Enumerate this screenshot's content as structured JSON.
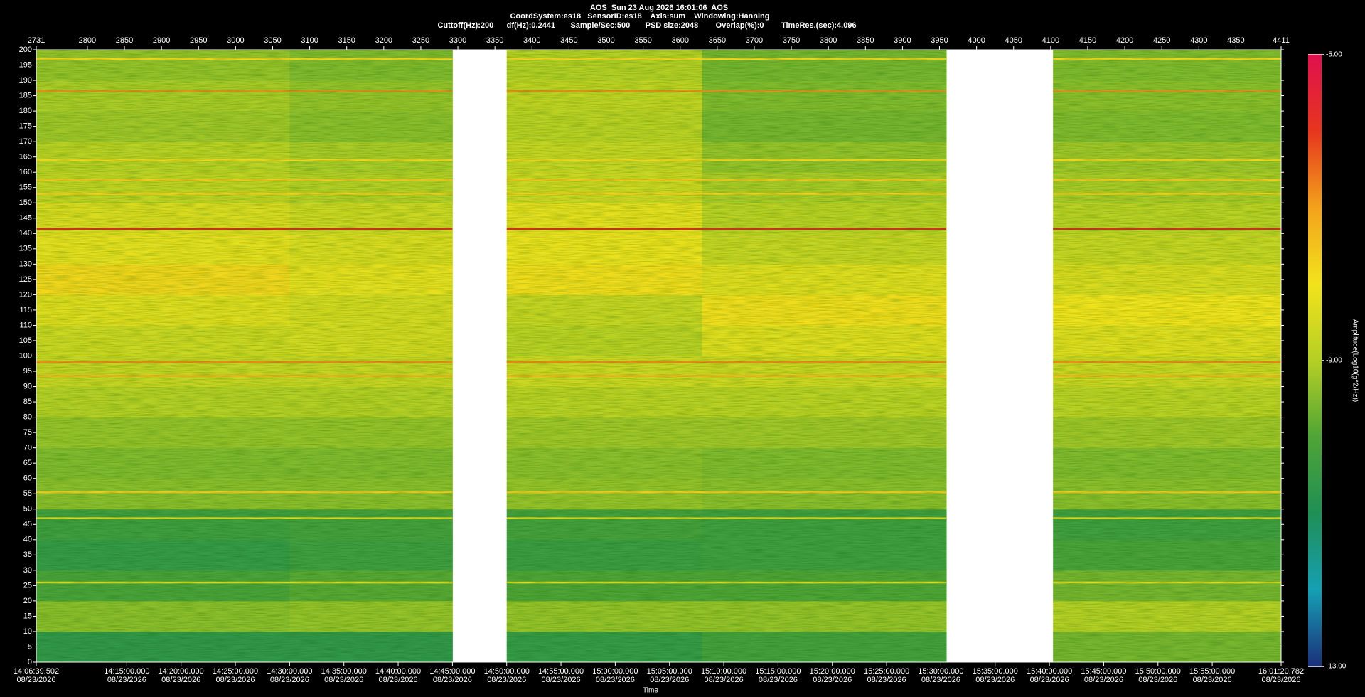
{
  "chart_data": {
    "type": "spectrogram",
    "title": "AOS  Sun 23 Aug 2026 16:01:06  AOS",
    "subtitle": "CoordSystem:es18   SensorID:es18    Axis:sum    Windowing:Hanning",
    "parameters": "Cuttoff(Hz):200      df(Hz):0.2441       Sample/Sec:500       PSD size:2048        Overlap(%):0        TimeRes.(sec):4.096",
    "xlabel": "Time",
    "colorbar_label": "Amplitude(Log10(g^2/Hz))",
    "xlim": [
      50799.502,
      57680.782
    ],
    "xticks": [
      {
        "value": 50799.502,
        "label": "14:06:39.502",
        "date": "08/23/2026"
      },
      {
        "value": 51300,
        "label": "14:15:00.000",
        "date": "08/23/2026"
      },
      {
        "value": 51600,
        "label": "14:20:00.000",
        "date": "08/23/2026"
      },
      {
        "value": 51900,
        "label": "14:25:00.000",
        "date": "08/23/2026"
      },
      {
        "value": 52200,
        "label": "14:30:00.000",
        "date": "08/23/2026"
      },
      {
        "value": 52500,
        "label": "14:35:00.000",
        "date": "08/23/2026"
      },
      {
        "value": 52800,
        "label": "14:40:00.000",
        "date": "08/23/2026"
      },
      {
        "value": 53100,
        "label": "14:45:00.000",
        "date": "08/23/2026"
      },
      {
        "value": 53400,
        "label": "14:50:00.000",
        "date": "08/23/2026"
      },
      {
        "value": 53700,
        "label": "14:55:00.000",
        "date": "08/23/2026"
      },
      {
        "value": 54000,
        "label": "15:00:00.000",
        "date": "08/23/2026"
      },
      {
        "value": 54300,
        "label": "15:05:00.000",
        "date": "08/23/2026"
      },
      {
        "value": 54600,
        "label": "15:10:00.000",
        "date": "08/23/2026"
      },
      {
        "value": 54900,
        "label": "15:15:00.000",
        "date": "08/23/2026"
      },
      {
        "value": 55200,
        "label": "15:20:00.000",
        "date": "08/23/2026"
      },
      {
        "value": 55500,
        "label": "15:25:00.000",
        "date": "08/23/2026"
      },
      {
        "value": 55800,
        "label": "15:30:00.000",
        "date": "08/23/2026"
      },
      {
        "value": 56100,
        "label": "15:35:00.000",
        "date": "08/23/2026"
      },
      {
        "value": 56400,
        "label": "15:40:00.000",
        "date": "08/23/2026"
      },
      {
        "value": 56700,
        "label": "15:45:00.000",
        "date": "08/23/2026"
      },
      {
        "value": 57000,
        "label": "15:50:00.000",
        "date": "08/23/2026"
      },
      {
        "value": 57300,
        "label": "15:55:00.000",
        "date": "08/23/2026"
      },
      {
        "value": 57680.782,
        "label": "16:01:20.782",
        "date": "08/23/2026"
      }
    ],
    "x2lim": [
      2731,
      4411
    ],
    "x2ticks": [
      2731,
      2800,
      2850,
      2900,
      2950,
      3000,
      3050,
      3100,
      3150,
      3200,
      3250,
      3300,
      3350,
      3400,
      3450,
      3500,
      3550,
      3600,
      3650,
      3700,
      3750,
      3800,
      3850,
      3900,
      3950,
      4000,
      4050,
      4100,
      4150,
      4200,
      4250,
      4300,
      4350,
      4411
    ],
    "ylim": [
      0,
      200
    ],
    "yticks": [
      0,
      5,
      10,
      15,
      20,
      25,
      30,
      35,
      40,
      45,
      50,
      55,
      60,
      65,
      70,
      75,
      80,
      85,
      90,
      95,
      100,
      105,
      110,
      115,
      120,
      125,
      130,
      135,
      140,
      145,
      150,
      155,
      160,
      165,
      170,
      175,
      180,
      185,
      190,
      195,
      200
    ],
    "zlim": [
      -13,
      -5
    ],
    "zticks": [
      {
        "value": -5,
        "label": "-5.00"
      },
      {
        "value": -9,
        "label": "-9.00"
      },
      {
        "value": -13,
        "label": "-13.00"
      }
    ],
    "colormap": [
      {
        "value": -13,
        "color": "#1b2f7a"
      },
      {
        "value": -12,
        "color": "#169fb4"
      },
      {
        "value": -11,
        "color": "#1f8f55"
      },
      {
        "value": -10,
        "color": "#4fa436"
      },
      {
        "value": -9,
        "color": "#b5cf24"
      },
      {
        "value": -8,
        "color": "#f2e31c"
      },
      {
        "value": -7,
        "color": "#f3a21c"
      },
      {
        "value": -6,
        "color": "#e6361e"
      },
      {
        "value": -5,
        "color": "#e0104e"
      }
    ],
    "xbins": [
      50799.502,
      52200,
      53100,
      53400,
      54480,
      55830,
      56420,
      57680.782
    ],
    "ybins": [
      0,
      10,
      20,
      30,
      40,
      50,
      60,
      70,
      80,
      90,
      100,
      110,
      120,
      130,
      140,
      150,
      160,
      170,
      180,
      190,
      200
    ],
    "z": [
      [
        -10.6,
        -10.6,
        null,
        -10.5,
        -10.2,
        null,
        -9.6
      ],
      [
        -9.4,
        -9.3,
        null,
        -9.3,
        -9.3,
        null,
        -9.0
      ],
      [
        -10.1,
        -9.9,
        null,
        -10.0,
        -10.0,
        null,
        -9.6
      ],
      [
        -10.5,
        -10.3,
        null,
        -10.4,
        -10.3,
        null,
        -10.1
      ],
      [
        -10.3,
        -10.2,
        null,
        -10.2,
        -10.3,
        null,
        -10.3
      ],
      [
        -9.4,
        -9.4,
        null,
        -9.3,
        -9.4,
        null,
        -9.4
      ],
      [
        -9.5,
        -9.5,
        null,
        -9.4,
        -9.5,
        null,
        -9.5
      ],
      [
        -9.3,
        -9.3,
        null,
        -9.2,
        -9.2,
        null,
        -9.2
      ],
      [
        -9.0,
        -9.0,
        null,
        -8.9,
        -8.9,
        null,
        -8.9
      ],
      [
        -8.7,
        -8.7,
        null,
        -8.6,
        -8.6,
        null,
        -8.6
      ],
      [
        -8.6,
        -8.5,
        null,
        -8.9,
        -8.3,
        null,
        -8.3
      ],
      [
        -8.3,
        -8.5,
        null,
        -8.7,
        -7.9,
        null,
        -8.0
      ],
      [
        -7.8,
        -8.2,
        null,
        -7.9,
        -8.3,
        null,
        -8.4
      ],
      [
        -8.2,
        -8.4,
        null,
        -8.1,
        -8.7,
        null,
        -8.7
      ],
      [
        -8.4,
        -8.6,
        null,
        -8.2,
        -8.9,
        null,
        -8.9
      ],
      [
        -8.8,
        -9.0,
        null,
        -8.6,
        -9.1,
        null,
        -9.1
      ],
      [
        -8.9,
        -9.1,
        null,
        -8.7,
        -9.3,
        null,
        -9.2
      ],
      [
        -9.2,
        -9.4,
        null,
        -8.9,
        -9.6,
        null,
        -9.5
      ],
      [
        -9.1,
        -9.3,
        null,
        -8.8,
        -9.5,
        null,
        -9.4
      ],
      [
        -9.3,
        -9.5,
        null,
        -9.0,
        -9.6,
        null,
        -9.5
      ]
    ],
    "lines": [
      {
        "freq": 141.5,
        "value": -5.6
      },
      {
        "freq": 186.5,
        "value": -6.8
      },
      {
        "freq": 197,
        "value": -7.8
      },
      {
        "freq": 164,
        "value": -7.8
      },
      {
        "freq": 157.5,
        "value": -7.6
      },
      {
        "freq": 153,
        "value": -7.7
      },
      {
        "freq": 98,
        "value": -6.8
      },
      {
        "freq": 93.5,
        "value": -7.3
      },
      {
        "freq": 55.5,
        "value": -7.6
      },
      {
        "freq": 47,
        "value": -8.3
      },
      {
        "freq": 26,
        "value": -8.4
      }
    ]
  }
}
